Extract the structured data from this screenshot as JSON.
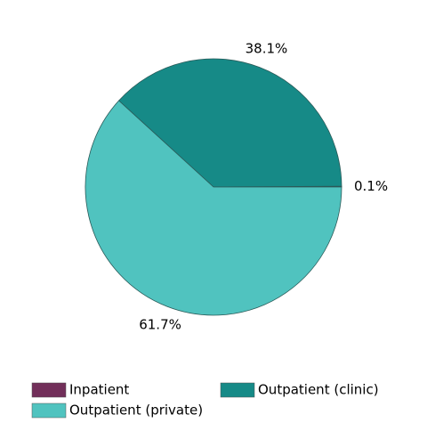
{
  "chart_data": {
    "type": "pie",
    "categories": [
      "Inpatient",
      "Outpatient (clinic)",
      "Outpatient (private)"
    ],
    "values": [
      0.1,
      38.1,
      61.7
    ],
    "value_labels": [
      "0.1%",
      "38.1%",
      "61.7%"
    ],
    "colors": [
      "#722f5a",
      "#168a87",
      "#50c3bf"
    ],
    "legend": "bottom"
  }
}
